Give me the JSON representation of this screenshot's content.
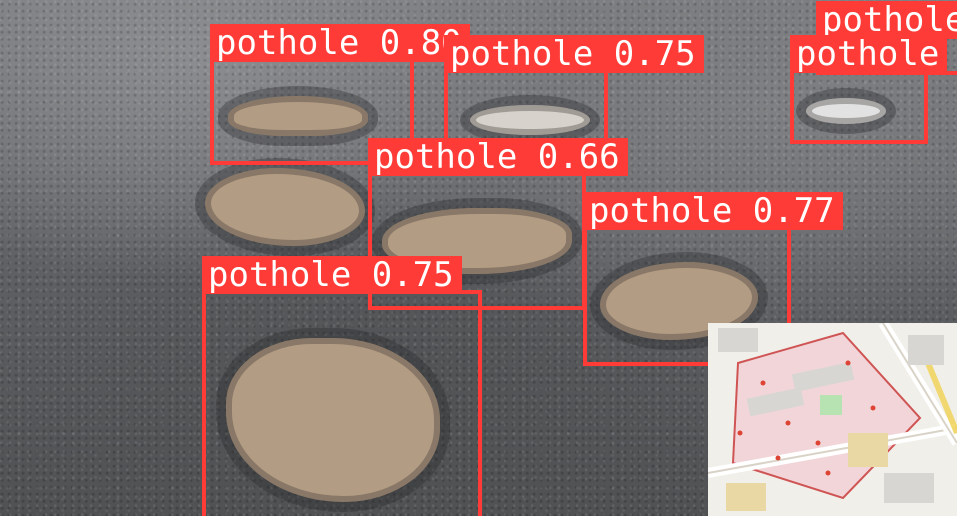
{
  "detections": [
    {
      "label": "pothole 0.80"
    },
    {
      "label": "pothole 0.75"
    },
    {
      "label": "pothole"
    },
    {
      "label": "pothole"
    },
    {
      "label": "pothole 0.66"
    },
    {
      "label": "pothole 0.77"
    },
    {
      "label": "pothole 0.75"
    }
  ],
  "colors": {
    "box": "#ff3b38",
    "label_text": "#ffffff",
    "puddle": "#b39c84",
    "asphalt": "#5f6062"
  }
}
